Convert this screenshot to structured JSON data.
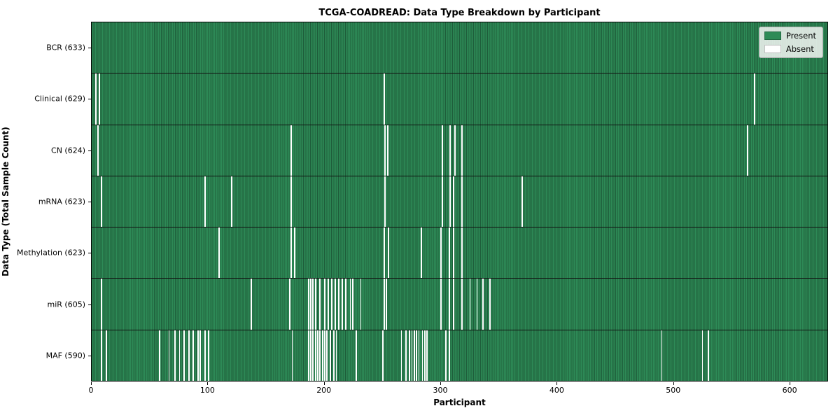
{
  "chart_data": {
    "type": "heatmap",
    "title": "TCGA-COADREAD: Data Type Breakdown by Participant",
    "xlabel": "Participant",
    "ylabel": "Data Type (Total Sample Count)",
    "x_min": 0,
    "x_max": 633,
    "x_ticks": [
      0,
      100,
      200,
      300,
      400,
      500,
      600
    ],
    "grid": false,
    "legend_position": "upper right",
    "legend": [
      {
        "label": "Present",
        "color": "#2e8b57"
      },
      {
        "label": "Absent",
        "color": "#ffffff"
      }
    ],
    "colors": {
      "present": "#2e8b57",
      "bar_edge": "#1e5c3a",
      "absent": "#ffffff"
    },
    "rows": [
      {
        "name": "BCR",
        "total": 633,
        "label": "BCR (633)",
        "absent": []
      },
      {
        "name": "Clinical",
        "total": 629,
        "label": "Clinical (629)",
        "absent": [
          3,
          6,
          251,
          570
        ]
      },
      {
        "name": "CN",
        "total": 624,
        "label": "CN (624)",
        "absent": [
          5,
          171,
          252,
          254,
          301,
          308,
          312,
          318,
          564
        ]
      },
      {
        "name": "mRNA",
        "total": 623,
        "label": "mRNA (623)",
        "absent": [
          8,
          97,
          120,
          171,
          252,
          301,
          308,
          311,
          318,
          370
        ]
      },
      {
        "name": "Methylation",
        "total": 623,
        "label": "Methylation (623)",
        "absent": [
          109,
          171,
          174,
          251,
          255,
          283,
          300,
          307,
          311,
          318
        ]
      },
      {
        "name": "miR",
        "total": 605,
        "label": "miR (605)",
        "absent": [
          8,
          137,
          170,
          186,
          188,
          190,
          192,
          196,
          200,
          203,
          206,
          209,
          212,
          215,
          218,
          222,
          224,
          231,
          251,
          253,
          300,
          307,
          311,
          318,
          325,
          331,
          336,
          342
        ]
      },
      {
        "name": "MAF",
        "total": 590,
        "label": "MAF (590)",
        "absent": [
          8,
          12,
          58,
          66,
          71,
          75,
          79,
          83,
          87,
          91,
          93,
          97,
          100,
          172,
          186,
          188,
          190,
          192,
          194,
          196,
          198,
          200,
          202,
          205,
          208,
          210,
          227,
          250,
          266,
          270,
          273,
          275,
          277,
          279,
          281,
          284,
          286,
          288,
          304,
          307,
          490,
          525,
          530
        ]
      }
    ]
  }
}
